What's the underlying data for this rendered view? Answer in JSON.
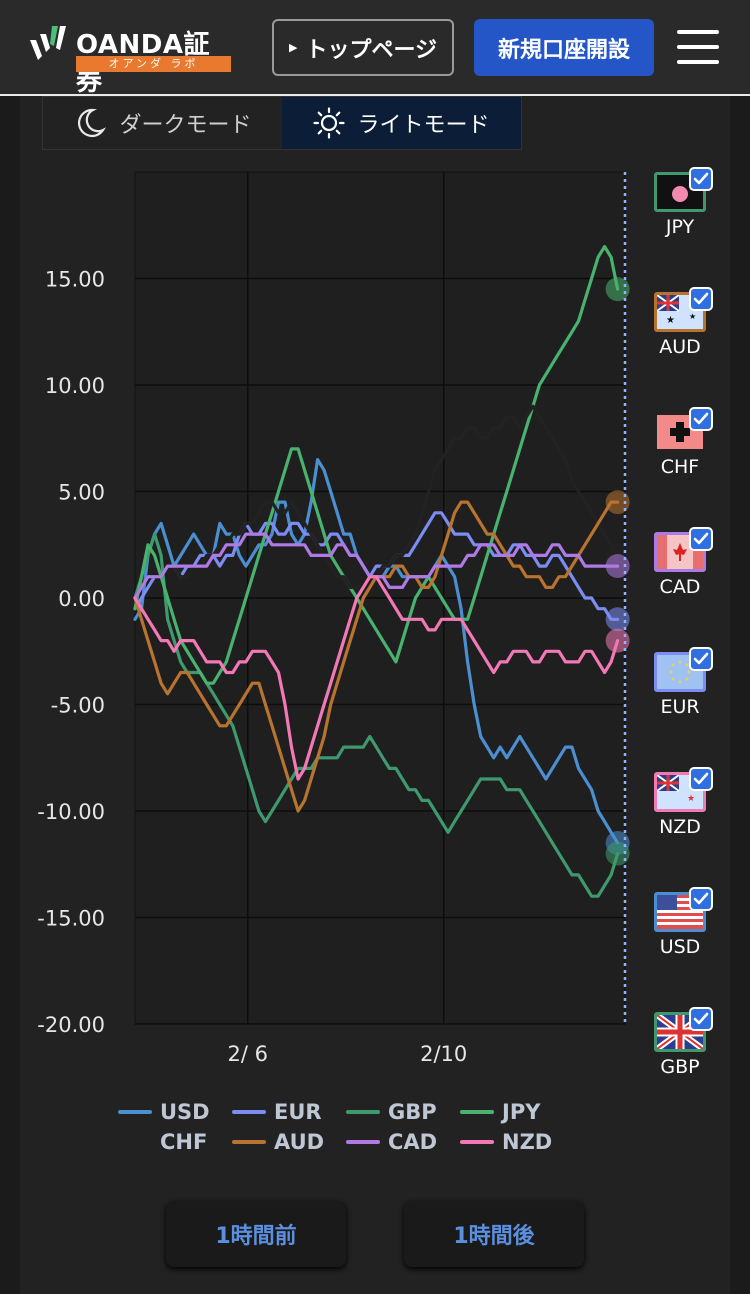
{
  "header": {
    "logo_text": "OANDA証券",
    "logo_sub": "オアンダ ラボ",
    "top_page_label": "トップページ",
    "open_account_label": "新規口座開設"
  },
  "mode_toggle": {
    "dark_label": "ダークモード",
    "light_label": "ライトモード",
    "active": "light"
  },
  "currencies": [
    {
      "code": "JPY",
      "checked": true,
      "border": "#3e9a6e"
    },
    {
      "code": "AUD",
      "checked": true,
      "border": "#b8732e"
    },
    {
      "code": "CHF",
      "checked": true,
      "border": "#222222"
    },
    {
      "code": "CAD",
      "checked": true,
      "border": "#b07ae6"
    },
    {
      "code": "EUR",
      "checked": true,
      "border": "#7b8cf2"
    },
    {
      "code": "NZD",
      "checked": true,
      "border": "#f279b5"
    },
    {
      "code": "USD",
      "checked": true,
      "border": "#4b8fd1"
    },
    {
      "code": "GBP",
      "checked": true,
      "border": "#3e9a6e"
    }
  ],
  "buttons": {
    "prev_hour": "1時間前",
    "next_hour": "1時間後"
  },
  "chart_data": {
    "type": "line",
    "ylim": [
      -20,
      20
    ],
    "yticks": [
      "15.00",
      "10.00",
      "5.00",
      "0.00",
      "-5.00",
      "-10.00",
      "-15.00",
      "-20.00"
    ],
    "ytick_values": [
      15,
      10,
      5,
      0,
      -5,
      -10,
      -15,
      -20
    ],
    "xticks": [
      "2/ 6",
      "2/10"
    ],
    "xtick_positions": [
      0.23,
      0.63
    ],
    "xlim": [
      0,
      1
    ],
    "grid": true,
    "legend": "bottom",
    "series": [
      {
        "name": "USD",
        "color": "#4b8fd1",
        "values": [
          -1,
          -0.5,
          2,
          3,
          3.5,
          2.5,
          1.5,
          2,
          2.5,
          3,
          2.5,
          2,
          2,
          3.5,
          3,
          3,
          2,
          1.5,
          2,
          2.5,
          2.5,
          3,
          4.5,
          4.5,
          3,
          2.5,
          3,
          4.5,
          6.5,
          6,
          5,
          4,
          3,
          3,
          2,
          1.5,
          1,
          1,
          1,
          1.5,
          1.5,
          1,
          1,
          1,
          1,
          1,
          1.5,
          2,
          1.5,
          1,
          -0.5,
          -3,
          -5,
          -6.5,
          -7,
          -7.5,
          -7,
          -7.5,
          -7,
          -6.5,
          -7,
          -7.5,
          -8,
          -8.5,
          -8,
          -7.5,
          -7,
          -7,
          -8,
          -8.5,
          -9,
          -10,
          -10.5,
          -11,
          -11.5
        ]
      },
      {
        "name": "EUR",
        "color": "#7b8cf2",
        "values": [
          -0.5,
          0,
          0.5,
          1,
          1,
          1.5,
          1.5,
          1,
          1.5,
          1.5,
          2,
          2,
          2,
          1.5,
          2,
          2,
          3,
          3.5,
          3,
          3,
          3.5,
          3.5,
          3,
          3,
          3.5,
          3.5,
          3,
          3,
          2.5,
          2.5,
          3,
          3,
          2.5,
          2,
          2,
          1.5,
          1,
          1.5,
          1.5,
          1.5,
          2,
          2,
          2,
          2.5,
          3,
          3.5,
          4,
          4,
          3.5,
          3,
          3,
          3,
          2.5,
          2.5,
          2.5,
          2,
          2,
          2,
          2.5,
          2.5,
          2,
          2,
          1.5,
          1.5,
          2,
          2,
          1.5,
          1,
          0.5,
          0,
          0,
          -0.5,
          -0.5,
          -1,
          -1
        ]
      },
      {
        "name": "GBP",
        "color": "#3e9a6e",
        "values": [
          0,
          1,
          2,
          3,
          2,
          -1,
          -2,
          -3,
          -3.5,
          -3.5,
          -3.5,
          -4,
          -4.5,
          -5,
          -5.5,
          -6,
          -7,
          -8,
          -9,
          -10,
          -10.5,
          -10,
          -9.5,
          -9,
          -8.5,
          -8,
          -8,
          -8,
          -7.5,
          -7.5,
          -7.5,
          -7.5,
          -7,
          -7,
          -7,
          -7,
          -6.5,
          -7,
          -7.5,
          -8,
          -8,
          -8.5,
          -9,
          -9,
          -9.5,
          -9.5,
          -10,
          -10.5,
          -11,
          -10.5,
          -10,
          -9.5,
          -9,
          -8.5,
          -8.5,
          -8.5,
          -8.5,
          -9,
          -9,
          -9,
          -9.5,
          -10,
          -10.5,
          -11,
          -11.5,
          -12,
          -12.5,
          -13,
          -13,
          -13.5,
          -14,
          -14,
          -13.5,
          -13,
          -12
        ]
      },
      {
        "name": "JPY",
        "color": "#48b26e",
        "values": [
          -0.5,
          1,
          2.5,
          2,
          1,
          0,
          -1,
          -2,
          -2.5,
          -3,
          -3.5,
          -4,
          -4,
          -3.5,
          -3,
          -2,
          -1,
          0,
          1,
          2,
          3,
          4,
          5,
          6,
          7,
          7,
          6,
          5,
          4,
          3,
          2,
          1.5,
          1,
          0.5,
          0,
          -0.5,
          -1,
          -1.5,
          -2,
          -2.5,
          -3,
          -2,
          -1,
          0,
          0.5,
          1,
          0.5,
          0,
          -0.5,
          -1,
          -1,
          -1,
          0,
          1,
          2,
          3,
          4,
          5,
          6,
          7,
          8,
          9,
          10,
          10.5,
          11,
          11.5,
          12,
          12.5,
          13,
          14,
          15,
          16,
          16.5,
          16,
          14.5
        ]
      },
      {
        "name": "CHF",
        "color": "#222222",
        "values": [
          0,
          0.5,
          1,
          1,
          1,
          1.5,
          1.5,
          1,
          1,
          1.5,
          1.5,
          2,
          2,
          2.5,
          2.5,
          3,
          3,
          3.5,
          3.5,
          4,
          4.5,
          4.5,
          4,
          4,
          4.5,
          4,
          3.5,
          3,
          2.5,
          2,
          1.5,
          1,
          1,
          0.5,
          0.5,
          0.5,
          1,
          1,
          1.5,
          1.5,
          2,
          2,
          2.5,
          3,
          4,
          5,
          6,
          6.5,
          7,
          7.5,
          7.5,
          8,
          8,
          7.5,
          7.5,
          8,
          8,
          8.5,
          8.5,
          8,
          8.5,
          9,
          8.5,
          8,
          7.5,
          7,
          6.5,
          5.5,
          5,
          4.5,
          4,
          3.5,
          3,
          2.5,
          2
        ]
      },
      {
        "name": "AUD",
        "color": "#b8732e",
        "values": [
          0,
          -1,
          -2,
          -3,
          -4,
          -4.5,
          -4,
          -3.5,
          -3.5,
          -4,
          -4.5,
          -5,
          -5.5,
          -6,
          -6,
          -5.5,
          -5,
          -4.5,
          -4,
          -4,
          -5,
          -6,
          -7,
          -8,
          -9,
          -10,
          -9.5,
          -8.5,
          -7.5,
          -6.5,
          -5,
          -4,
          -3,
          -2,
          -1,
          0,
          0.5,
          1,
          1,
          1,
          1.5,
          1.5,
          1,
          1,
          0.5,
          0.5,
          1,
          2,
          3,
          4,
          4.5,
          4.5,
          4,
          3.5,
          3,
          3,
          2.5,
          2,
          1.5,
          1.5,
          1,
          1,
          1,
          0.5,
          0.5,
          1,
          1,
          1.5,
          2,
          2.5,
          3,
          3.5,
          4,
          4.5,
          4.5
        ]
      },
      {
        "name": "CAD",
        "color": "#b07ae6",
        "values": [
          0,
          0.5,
          1,
          1,
          1,
          1.5,
          1.5,
          1.5,
          1.5,
          1.5,
          1.5,
          1.5,
          2,
          2,
          2.5,
          2.5,
          2.5,
          3,
          3,
          3,
          3,
          2.5,
          2.5,
          2.5,
          2.5,
          2.5,
          2.5,
          2,
          2,
          2,
          2,
          2.5,
          2.5,
          2,
          2,
          1.5,
          1,
          1,
          1,
          0.5,
          0.5,
          0.5,
          1,
          1,
          1,
          1,
          1.5,
          1.5,
          1.5,
          1.5,
          1.5,
          2,
          2,
          2.5,
          2.5,
          2.5,
          2,
          2,
          2,
          2.5,
          2.5,
          2,
          2,
          2,
          2.5,
          2.5,
          2,
          2,
          2,
          1.5,
          1.5,
          1.5,
          1.5,
          1.5,
          1.5
        ]
      },
      {
        "name": "NZD",
        "color": "#f279b5",
        "values": [
          0,
          -0.5,
          -1,
          -1.5,
          -2,
          -2,
          -2.5,
          -2,
          -2,
          -2,
          -2.5,
          -3,
          -3,
          -3,
          -3.5,
          -3.5,
          -3,
          -3,
          -2.5,
          -2.5,
          -2.5,
          -3,
          -3.5,
          -5,
          -7,
          -8.5,
          -8,
          -7,
          -6,
          -5,
          -4,
          -3,
          -2,
          -1,
          0,
          0.5,
          1,
          1,
          0.5,
          0,
          -0.5,
          -1,
          -1,
          -1,
          -1,
          -1.5,
          -1.5,
          -1,
          -1,
          -1,
          -1,
          -1.5,
          -2,
          -2.5,
          -3,
          -3.5,
          -3,
          -3,
          -2.5,
          -2.5,
          -2.5,
          -3,
          -3,
          -2.5,
          -2.5,
          -2.5,
          -3,
          -3,
          -3,
          -2.5,
          -2.5,
          -3,
          -3.5,
          -3,
          -2
        ]
      }
    ]
  }
}
